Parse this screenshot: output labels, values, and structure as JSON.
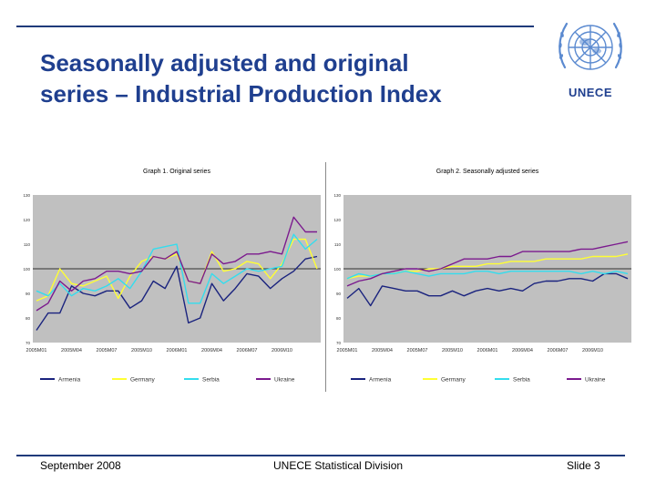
{
  "slide": {
    "title_line1": "Seasonally adjusted and original",
    "title_line2": "series – Industrial Production Index",
    "logo_text": "UNECE",
    "footer_left": "September 2008",
    "footer_center": "UNECE Statistical Division",
    "footer_right": "Slide 3"
  },
  "colors": {
    "title": "#1f3f8f",
    "plot_bg": "#c0c0c0",
    "armenia": "#1a237e",
    "germany": "#ffff33",
    "serbia": "#33ddee",
    "ukraine": "#7b1a8e"
  },
  "chart_data": [
    {
      "type": "line",
      "title": "Graph 1. Original series",
      "y_tick_labels": [
        "70",
        "80",
        "90",
        "100",
        "110",
        "120",
        "130"
      ],
      "ylim": [
        70,
        130
      ],
      "x_tick_labels": [
        "2005M01",
        "2005M04",
        "2005M07",
        "2005M10",
        "2006M01",
        "2006M04",
        "2006M07",
        "2006M10"
      ],
      "grid": false,
      "legend": "bottom",
      "series": [
        {
          "name": "Armenia",
          "values": [
            75,
            82,
            82,
            93,
            90,
            89,
            91,
            91,
            84,
            87,
            95,
            92,
            101,
            78,
            80,
            94,
            87,
            92,
            98,
            97,
            92,
            96,
            99,
            104,
            105
          ]
        },
        {
          "name": "Germany",
          "values": [
            87,
            89,
            100,
            94,
            93,
            95,
            97,
            88,
            97,
            103,
            105,
            104,
            106,
            95,
            94,
            107,
            99,
            100,
            103,
            102,
            96,
            102,
            112,
            112,
            100
          ]
        },
        {
          "name": "Serbia",
          "values": [
            91,
            89,
            94,
            89,
            92,
            91,
            93,
            96,
            92,
            99,
            108,
            109,
            110,
            86,
            86,
            98,
            94,
            97,
            100,
            99,
            100,
            101,
            114,
            108,
            112
          ]
        },
        {
          "name": "Ukraine",
          "values": [
            83,
            86,
            95,
            91,
            95,
            96,
            99,
            99,
            98,
            99,
            105,
            104,
            107,
            95,
            94,
            106,
            102,
            103,
            106,
            106,
            107,
            106,
            121,
            115,
            115
          ]
        }
      ]
    },
    {
      "type": "line",
      "title": "Graph 2. Seasonally adjusted series",
      "y_tick_labels": [
        "70",
        "80",
        "90",
        "100",
        "110",
        "120",
        "130"
      ],
      "ylim": [
        70,
        130
      ],
      "x_tick_labels": [
        "2005M01",
        "2005M04",
        "2005M07",
        "2005M10",
        "2006M01",
        "2006M04",
        "2006M07",
        "2006M10"
      ],
      "grid": false,
      "legend": "bottom",
      "series": [
        {
          "name": "Armenia",
          "values": [
            88,
            92,
            85,
            93,
            92,
            91,
            91,
            89,
            89,
            91,
            89,
            91,
            92,
            91,
            92,
            91,
            94,
            95,
            95,
            96,
            96,
            95,
            98,
            98,
            96
          ]
        },
        {
          "name": "Germany",
          "values": [
            96,
            97,
            97,
            98,
            98,
            99,
            99,
            100,
            100,
            101,
            101,
            101,
            102,
            102,
            103,
            103,
            103,
            104,
            104,
            104,
            104,
            105,
            105,
            105,
            106
          ]
        },
        {
          "name": "Serbia",
          "values": [
            96,
            98,
            97,
            98,
            98,
            99,
            98,
            97,
            98,
            98,
            98,
            99,
            99,
            98,
            99,
            99,
            99,
            99,
            99,
            99,
            98,
            99,
            98,
            99,
            98
          ]
        },
        {
          "name": "Ukraine",
          "values": [
            93,
            95,
            96,
            98,
            99,
            100,
            100,
            99,
            100,
            102,
            104,
            104,
            104,
            105,
            105,
            107,
            107,
            107,
            107,
            107,
            108,
            108,
            109,
            110,
            111
          ]
        }
      ]
    }
  ]
}
